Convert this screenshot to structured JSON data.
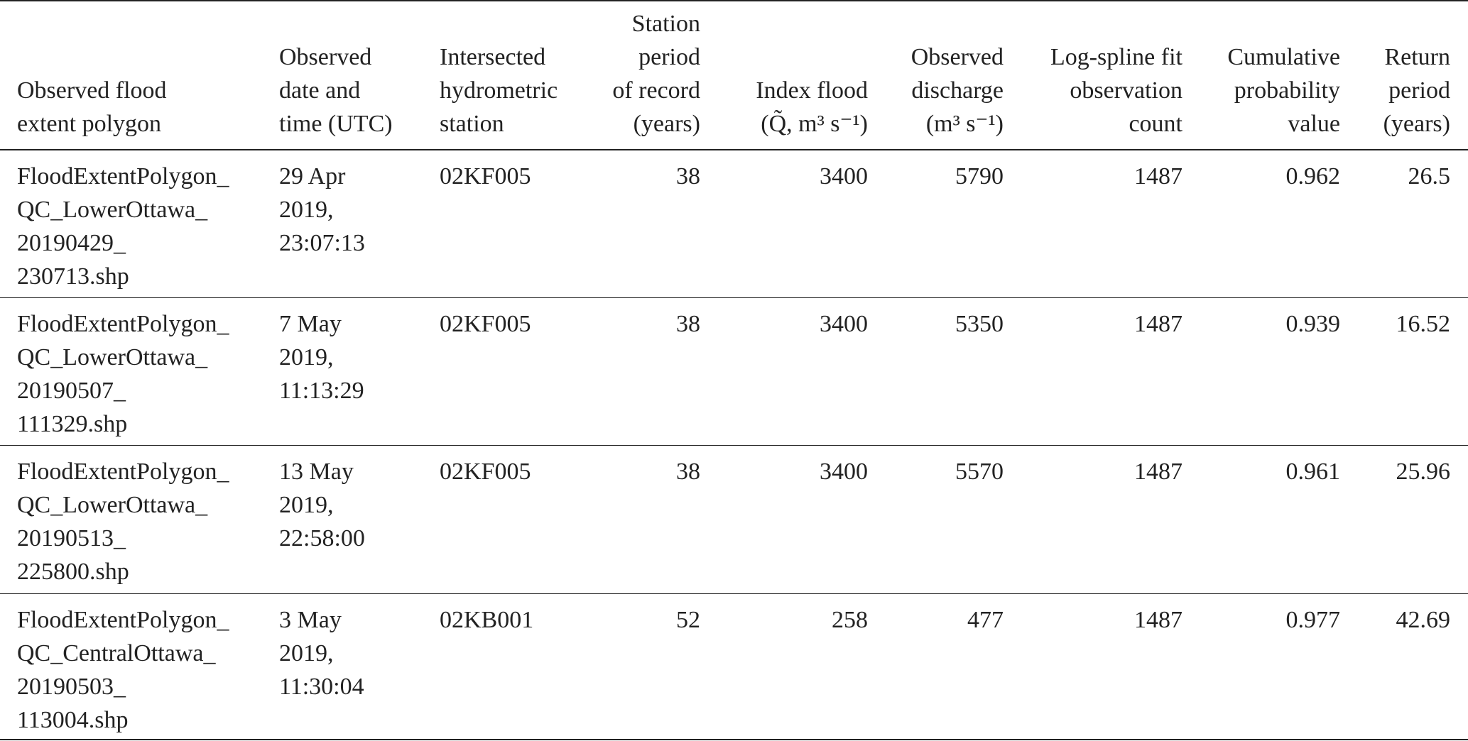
{
  "table": {
    "header": [
      [
        "Observed flood",
        "extent polygon"
      ],
      [
        "Observed",
        "date and",
        "time (UTC)"
      ],
      [
        "Intersected",
        "hydrometric",
        "station"
      ],
      [
        "Station",
        "period",
        "of record",
        "(years)"
      ],
      [
        "Index flood",
        "(Q̃, m³ s⁻¹)"
      ],
      [
        "Observed",
        "discharge",
        "(m³ s⁻¹)"
      ],
      [
        "Log-spline fit",
        "observation",
        "count"
      ],
      [
        "Cumulative",
        "probability",
        "value"
      ],
      [
        "Return",
        "period",
        "(years)"
      ]
    ],
    "rows": [
      [
        [
          "FloodExtentPolygon_",
          "QC_LowerOttawa_",
          "20190429_",
          "230713.shp"
        ],
        [
          "29 Apr",
          "2019,",
          "23:07:13"
        ],
        "02KF005",
        38,
        3400,
        5790,
        1487,
        0.962,
        26.5
      ],
      [
        [
          "FloodExtentPolygon_",
          "QC_LowerOttawa_",
          "20190507_",
          "111329.shp"
        ],
        [
          "7 May",
          "2019,",
          "11:13:29"
        ],
        "02KF005",
        38,
        3400,
        5350,
        1487,
        0.939,
        16.52
      ],
      [
        [
          "FloodExtentPolygon_",
          "QC_LowerOttawa_",
          "20190513_",
          "225800.shp"
        ],
        [
          "13 May",
          "2019,",
          "22:58:00"
        ],
        "02KF005",
        38,
        3400,
        5570,
        1487,
        0.961,
        25.96
      ],
      [
        [
          "FloodExtentPolygon_",
          "QC_CentralOttawa_",
          "20190503_",
          "113004.shp"
        ],
        [
          "3 May",
          "2019,",
          "11:30:04"
        ],
        "02KB001",
        52,
        258,
        477,
        1487,
        0.977,
        42.69
      ]
    ]
  }
}
